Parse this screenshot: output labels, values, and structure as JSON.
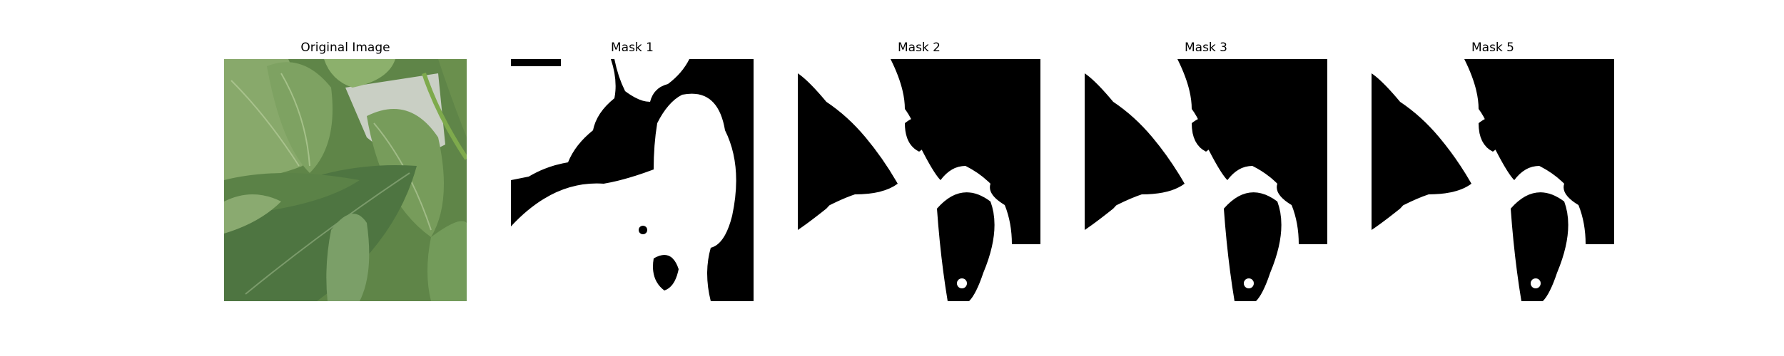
{
  "figure": {
    "panels": [
      {
        "title": "Original Image",
        "kind": "photo",
        "subject": "green pepper plant leaves"
      },
      {
        "title": "Mask 1",
        "kind": "mask"
      },
      {
        "title": "Mask 2",
        "kind": "mask"
      },
      {
        "title": "Mask 3",
        "kind": "mask"
      },
      {
        "title": "Mask 5",
        "kind": "mask"
      }
    ]
  },
  "colors": {
    "mask_foreground": "#ffffff",
    "mask_background": "#000000",
    "leaf_light": "#8fae6f",
    "leaf_mid": "#6c9452",
    "leaf_dark": "#4f7440",
    "background": "#ffffff"
  }
}
